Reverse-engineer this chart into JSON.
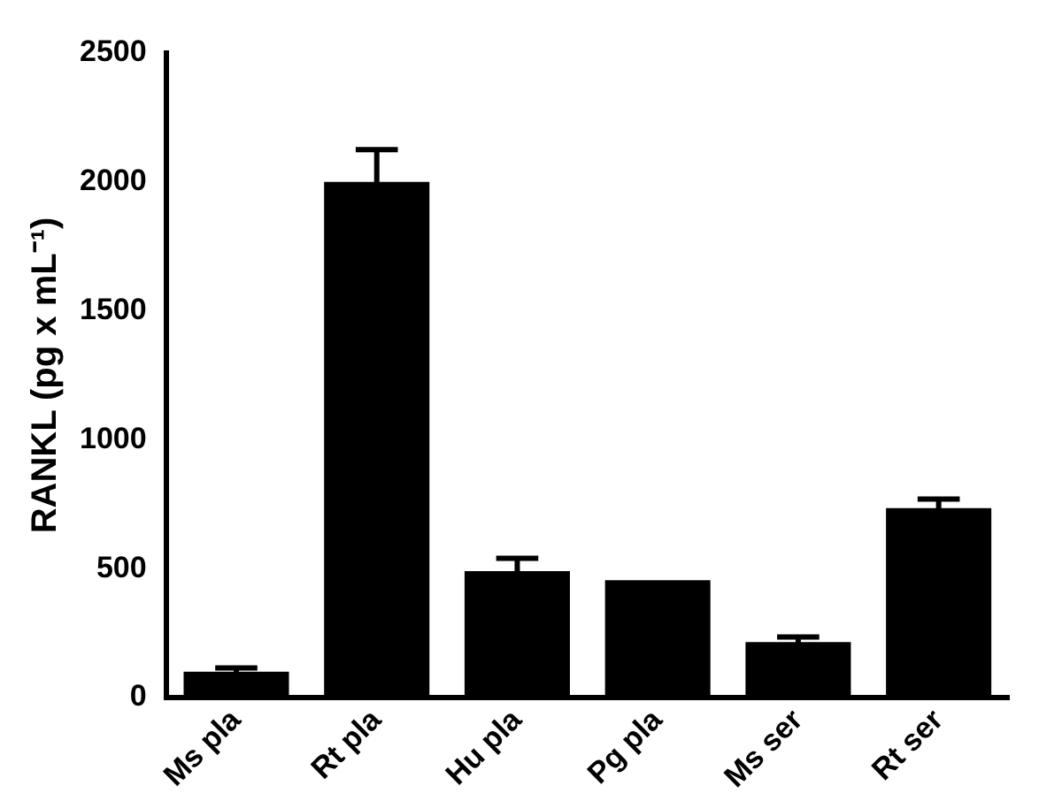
{
  "chart_data": {
    "type": "bar",
    "ylabel": "RANKL (pg x mL⁻¹)",
    "categories": [
      "Ms pla",
      "Rt pla",
      "Hu pla",
      "Pg pla",
      "Ms ser",
      "Rt ser"
    ],
    "values": [
      100,
      2000,
      490,
      455,
      215,
      735
    ],
    "errors": [
      15,
      125,
      50,
      null,
      20,
      35
    ],
    "color": "#000000",
    "ylim": [
      0,
      2500
    ],
    "yticks": [
      0,
      500,
      1000,
      1500,
      2000,
      2500
    ],
    "grid": false,
    "legend": false
  }
}
